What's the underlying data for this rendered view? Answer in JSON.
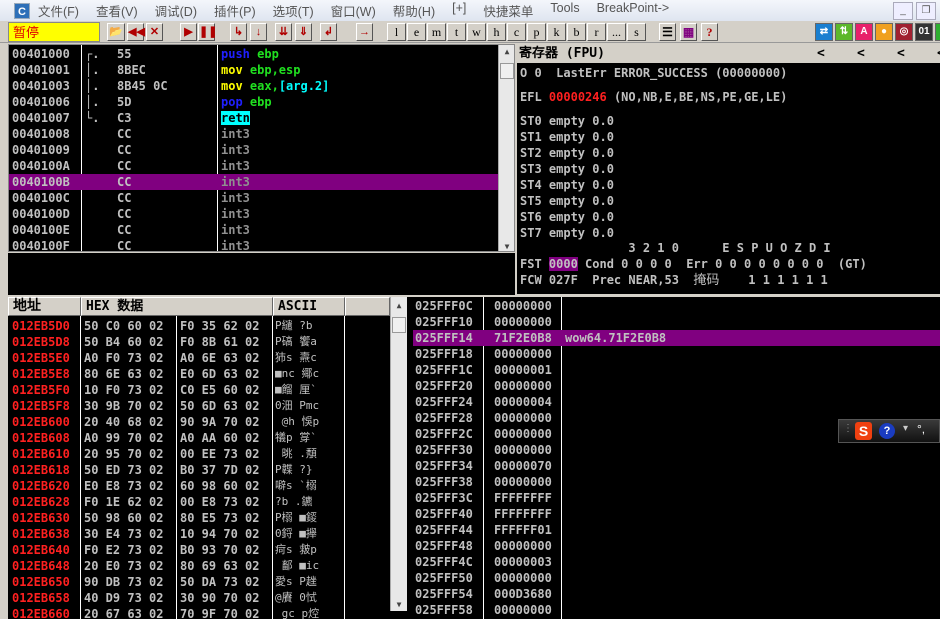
{
  "menu": {
    "app_icon": "C",
    "items": [
      "文件(F)",
      "查看(V)",
      "调试(D)",
      "插件(P)",
      "选项(T)",
      "窗口(W)",
      "帮助(H)",
      "[+]",
      "快捷菜单",
      "Tools",
      "BreakPoint->"
    ]
  },
  "toolbar": {
    "status": "暂停",
    "control_icons": [
      "open-icon",
      "rewind-icon",
      "close-icon",
      "run-icon",
      "pause-icon",
      "step-into-icon",
      "step-over-icon",
      "trace-into-icon",
      "trace-over-icon",
      "execute-till-return-icon",
      "go-to-icon"
    ],
    "control_glyphs": [
      "📂",
      "◀◀",
      "✕",
      "▶",
      "❚❚",
      "↳",
      "↓",
      "⇊",
      "⇓",
      "↲",
      "→"
    ],
    "window_buttons": [
      "l",
      "e",
      "m",
      "t",
      "w",
      "h",
      "c",
      "p",
      "k",
      "b",
      "r",
      "...",
      "s"
    ],
    "extra_glyphs": [
      "☰",
      "▦",
      "?"
    ],
    "color_icons": [
      {
        "name": "swap-icon",
        "glyph": "⇄",
        "color": "#1a7fd0"
      },
      {
        "name": "updown-icon",
        "glyph": "⇅",
        "color": "#5cb82a"
      },
      {
        "name": "font-a-icon",
        "glyph": "A",
        "color": "#e8206a"
      },
      {
        "name": "record-icon",
        "glyph": "●",
        "color": "#f0a020"
      },
      {
        "name": "target-icon",
        "glyph": "◎",
        "color": "#a02030"
      },
      {
        "name": "binary-icon",
        "glyph": "01",
        "color": "#333"
      },
      {
        "name": "green-icon",
        "glyph": "▮",
        "color": "#30b030"
      }
    ]
  },
  "disasm": {
    "rows": [
      {
        "addr": "00401000",
        "brk": "┌.",
        "hex": "55",
        "mn": "push",
        "ops": " ebp",
        "mc": "blue"
      },
      {
        "addr": "00401001",
        "brk": "│.",
        "hex": "8BEC",
        "mn": "mov",
        "ops": " ebp,esp",
        "mc": "yellow"
      },
      {
        "addr": "00401003",
        "brk": "│.",
        "hex": "8B45 0C",
        "mn": "mov",
        "ops": " eax,",
        "arg": "[arg.2]",
        "mc": "yellow"
      },
      {
        "addr": "00401006",
        "brk": "│.",
        "hex": "5D",
        "mn": "pop",
        "ops": " ebp",
        "mc": "blue"
      },
      {
        "addr": "00401007",
        "brk": "└.",
        "hex": "C3",
        "mn": "retn",
        "ops": "",
        "mc": "retn"
      },
      {
        "addr": "00401008",
        "brk": "",
        "hex": "CC",
        "mn": "int3",
        "ops": "",
        "mc": "gray"
      },
      {
        "addr": "00401009",
        "brk": "",
        "hex": "CC",
        "mn": "int3",
        "ops": "",
        "mc": "gray"
      },
      {
        "addr": "0040100A",
        "brk": "",
        "hex": "CC",
        "mn": "int3",
        "ops": "",
        "mc": "gray"
      },
      {
        "addr": "0040100B",
        "brk": "",
        "hex": "CC",
        "mn": "int3",
        "ops": "",
        "mc": "gray",
        "selected": true
      },
      {
        "addr": "0040100C",
        "brk": "",
        "hex": "CC",
        "mn": "int3",
        "ops": "",
        "mc": "gray"
      },
      {
        "addr": "0040100D",
        "brk": "",
        "hex": "CC",
        "mn": "int3",
        "ops": "",
        "mc": "gray"
      },
      {
        "addr": "0040100E",
        "brk": "",
        "hex": "CC",
        "mn": "int3",
        "ops": "",
        "mc": "gray"
      },
      {
        "addr": "0040100F",
        "brk": "",
        "hex": "CC",
        "mn": "int3",
        "ops": "",
        "mc": "gray"
      }
    ]
  },
  "registers": {
    "title": "寄存器 (FPU)",
    "arrows": [
      "<",
      "<",
      "<",
      "<"
    ],
    "lasterr": "O 0  LastErr ERROR_SUCCESS (00000000)",
    "efl_label": "EFL",
    "efl_value": "00000246",
    "efl_flags": " (NO,NB,E,BE,NS,PE,GE,LE)",
    "st": [
      "ST0 empty 0.0",
      "ST1 empty 0.0",
      "ST2 empty 0.0",
      "ST3 empty 0.0",
      "ST4 empty 0.0",
      "ST5 empty 0.0",
      "ST6 empty 0.0",
      "ST7 empty 0.0"
    ],
    "bits_header": "               3 2 1 0      E S P U O Z D I",
    "fst_label": "FST",
    "fst_value": "0000",
    "fst_rest": " Cond 0 0 0 0  Err 0 0 0 0 0 0 0 0  (GT)",
    "fcw": "FCW 027F  Prec NEAR,53  ",
    "mask_label": "掩码",
    "mask_bits": "    1 1 1 1 1 1"
  },
  "dump": {
    "headers": [
      "地址",
      "HEX 数据",
      "ASCII"
    ],
    "rows": [
      [
        "012EB5D0",
        "50 C0 60 02",
        "F0 35 62 02",
        "P繾 ?b"
      ],
      [
        "012EB5D8",
        "50 B4 60 02",
        "F0 8B 61 02",
        "P碻 饗a"
      ],
      [
        "012EB5E0",
        "A0 F0 73 02",
        "A0 6E 63 02",
        "犻s 燾c"
      ],
      [
        "012EB5E8",
        "80 6E 63 02",
        "E0 6D 63 02",
        "■nc 鄊c"
      ],
      [
        "012EB5F0",
        "10 F0 73 02",
        "C0 E5 60 02",
        "■餾 厘`"
      ],
      [
        "012EB5F8",
        "30 9B 70 02",
        "50 6D 63 02",
        "0沺 Pmc"
      ],
      [
        "012EB600",
        "20 40 68 02",
        "90 9A 70 02",
        " @h 悞p"
      ],
      [
        "012EB608",
        "A0 99 70 02",
        "A0 AA 60 02",
        "犠p 牚`"
      ],
      [
        "012EB610",
        "20 95 70 02",
        "00 EE 73 02",
        " 晀 .頺"
      ],
      [
        "012EB618",
        "50 ED 73 02",
        "B0 37 7D 02",
        "P韘 ?}"
      ],
      [
        "012EB620",
        "E0 E8 73 02",
        "60 98 60 02",
        "噼s `榒"
      ],
      [
        "012EB628",
        "F0 1E 62 02",
        "00 E8 73 02",
        "?b .鑣"
      ],
      [
        "012EB630",
        "50 98 60 02",
        "80 E5 73 02",
        "P榒 ■錽"
      ],
      [
        "012EB638",
        "30 E4 73 02",
        "10 94 70 02",
        "0鋝 ■攑"
      ],
      [
        "012EB640",
        "F0 E2 73 02",
        "B0 93 70 02",
        "疴s 皳p"
      ],
      [
        "012EB648",
        "20 E0 73 02",
        "80 69 63 02",
        " 鄐 ■ic"
      ],
      [
        "012EB650",
        "90 DB 73 02",
        "50 DA 73 02",
        "愛s P趖"
      ],
      [
        "012EB658",
        "40 D9 73 02",
        "30 90 70 02",
        "@賡 0恜"
      ],
      [
        "012EB660",
        "20 67 63 02",
        "70 9F 70 02",
        " gc p焢"
      ]
    ]
  },
  "stack": {
    "rows": [
      [
        "025FFF0C",
        "00000000",
        ""
      ],
      [
        "025FFF10",
        "00000000",
        ""
      ],
      [
        "025FFF14",
        "71F2E0B8",
        "wow64.71F2E0B8"
      ],
      [
        "025FFF18",
        "00000000",
        ""
      ],
      [
        "025FFF1C",
        "00000001",
        ""
      ],
      [
        "025FFF20",
        "00000000",
        ""
      ],
      [
        "025FFF24",
        "00000004",
        ""
      ],
      [
        "025FFF28",
        "00000000",
        ""
      ],
      [
        "025FFF2C",
        "00000000",
        ""
      ],
      [
        "025FFF30",
        "00000000",
        ""
      ],
      [
        "025FFF34",
        "00000070",
        ""
      ],
      [
        "025FFF38",
        "00000000",
        ""
      ],
      [
        "025FFF3C",
        "FFFFFFFF",
        ""
      ],
      [
        "025FFF40",
        "FFFFFFFF",
        ""
      ],
      [
        "025FFF44",
        "FFFFFF01",
        ""
      ],
      [
        "025FFF48",
        "00000000",
        ""
      ],
      [
        "025FFF4C",
        "00000003",
        ""
      ],
      [
        "025FFF50",
        "00000000",
        ""
      ],
      [
        "025FFF54",
        "000D3680",
        ""
      ],
      [
        "025FFF58",
        "00000000",
        ""
      ]
    ],
    "selected_index": 2
  },
  "ime": {
    "logo": "S",
    "help": "?",
    "punct": "°,"
  },
  "colors": {
    "selection": "#800080",
    "address_red": "#ff2020",
    "status_bg": "#ffff00"
  }
}
